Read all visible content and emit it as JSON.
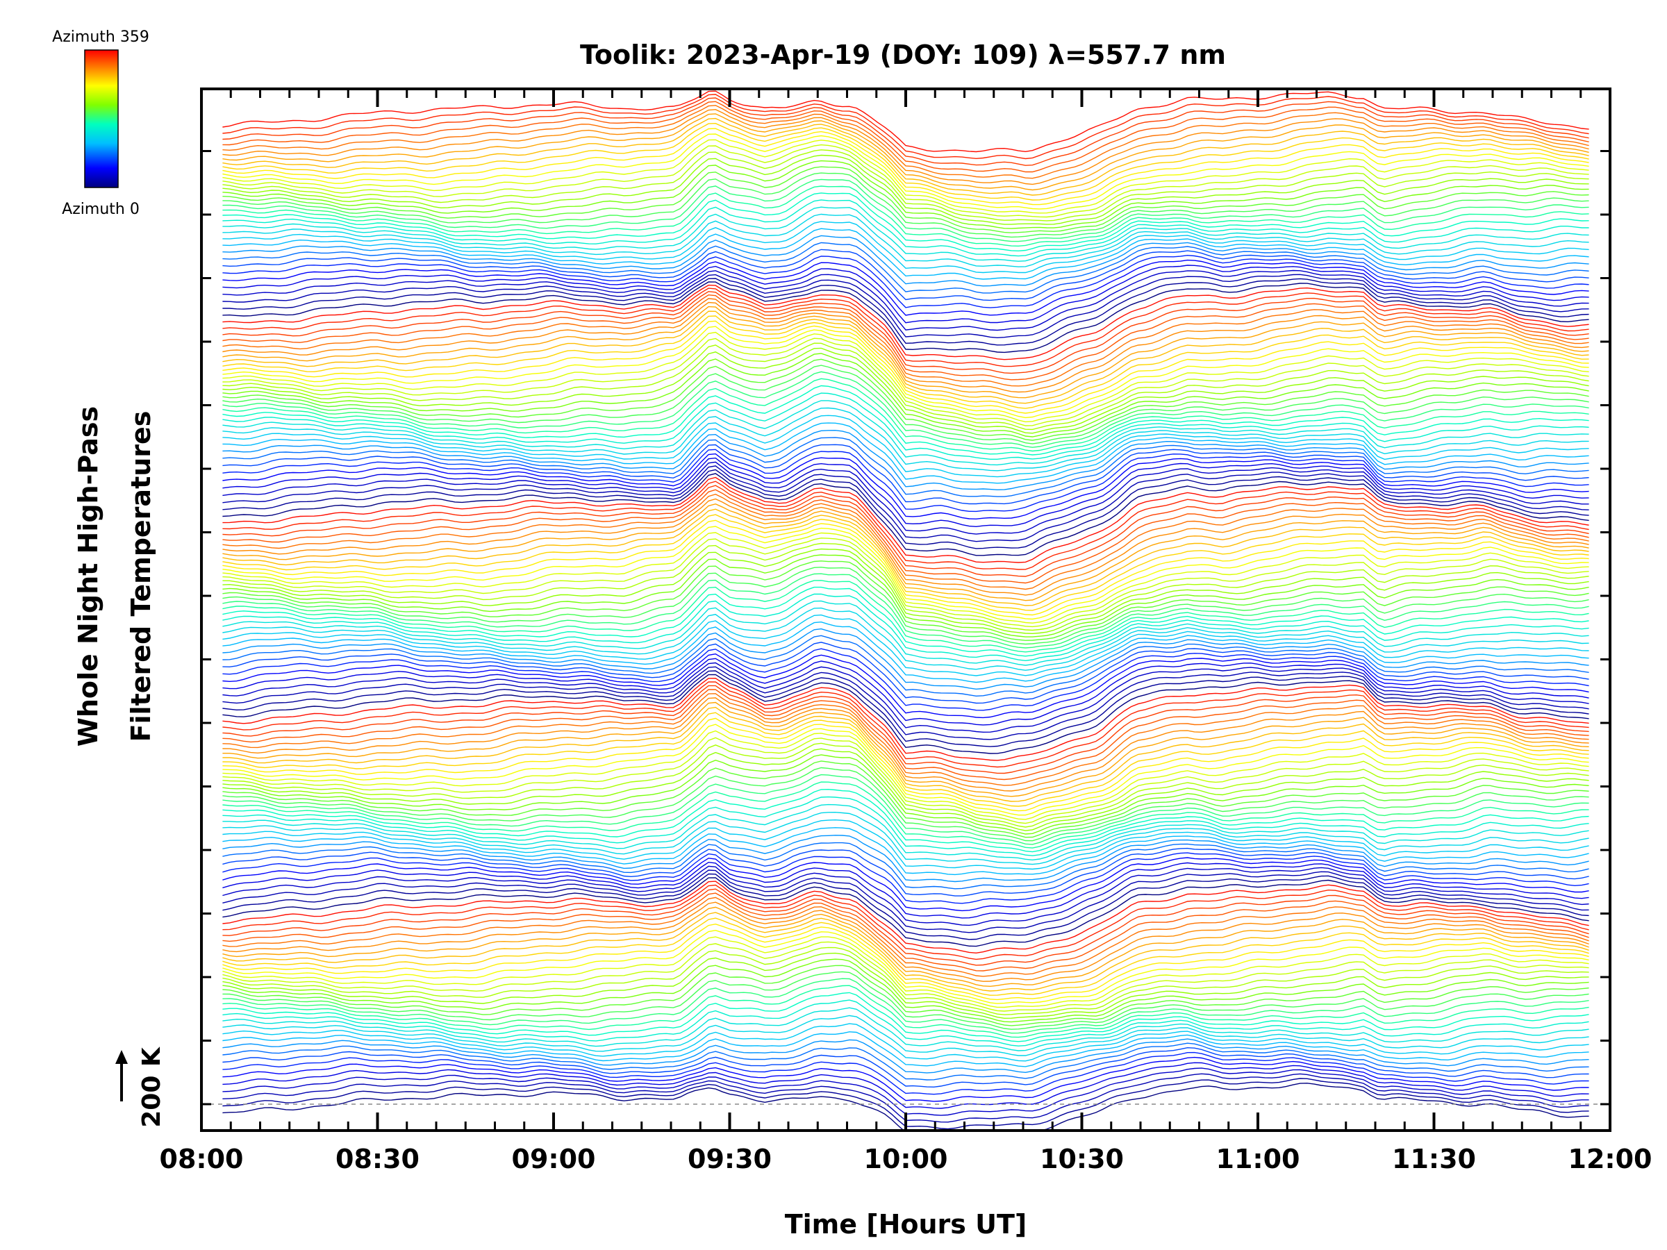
{
  "chart_data": {
    "type": "line",
    "title": "Toolik: 2023-Apr-19 (DOY: 109) λ=557.7 nm",
    "xlabel": "Time [Hours UT]",
    "ylabel_line1": "Whole Night High-Pass",
    "ylabel_line2": "Filtered Temperatures",
    "x_ticks": [
      "08:00",
      "08:30",
      "09:00",
      "09:30",
      "10:00",
      "10:30",
      "11:00",
      "11:30",
      "12:00"
    ],
    "xlim_hours": [
      8.0,
      12.0
    ],
    "scale_bar": "200 K",
    "colorbar": {
      "top_label": "Azimuth 359",
      "bottom_label": "Azimuth 0",
      "colormap": "rainbow",
      "colors": [
        "#000080",
        "#0000ff",
        "#00bfff",
        "#00ffbf",
        "#80ff00",
        "#ffff00",
        "#ff8000",
        "#ff0000"
      ]
    },
    "series_count": 360,
    "series_note_color": "colored by azimuth 0-359",
    "common_profile": {
      "x_hours": [
        8.1,
        8.2,
        8.35,
        8.5,
        8.65,
        8.8,
        8.95,
        9.05,
        9.2,
        9.35,
        9.45,
        9.5,
        9.6,
        9.65,
        9.75,
        9.85,
        9.95,
        10.0,
        10.1,
        10.2,
        10.35,
        10.45,
        10.55,
        10.65,
        10.8,
        10.9,
        11.0,
        11.1,
        11.2,
        11.3,
        11.35,
        11.45,
        11.55,
        11.65,
        11.75,
        11.93
      ],
      "temp_K": [
        0,
        2,
        0,
        3,
        -6,
        -12,
        -4,
        2,
        -6,
        10,
        130,
        90,
        50,
        60,
        120,
        100,
        -20,
        -110,
        -120,
        -140,
        -150,
        -110,
        -70,
        10,
        40,
        30,
        40,
        50,
        60,
        55,
        0,
        10,
        15,
        30,
        5,
        -10
      ]
    },
    "grid": false
  }
}
